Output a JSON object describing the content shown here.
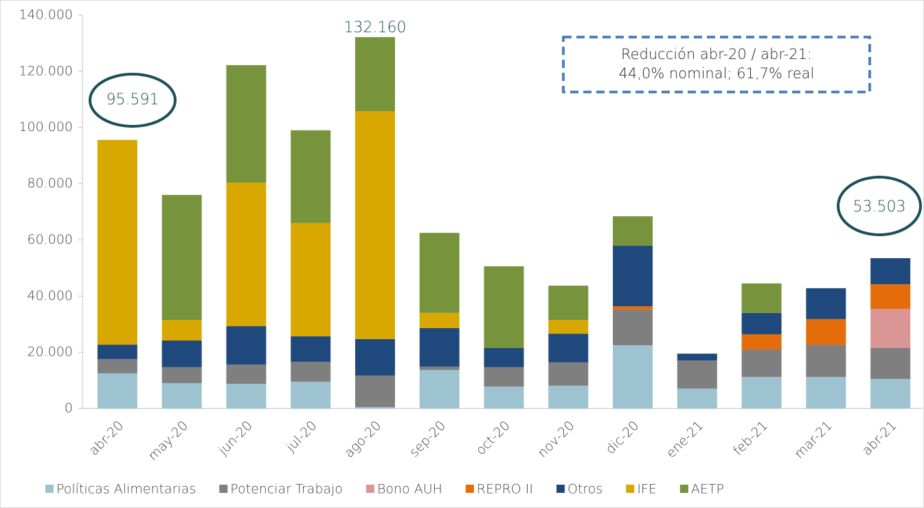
{
  "chart_data": {
    "type": "stacked_bar",
    "categories": [
      "abr-20",
      "may-20",
      "jun-20",
      "jul-20",
      "ago-20",
      "sep-20",
      "oct-20",
      "nov-20",
      "dic-20",
      "ene-21",
      "feb-21",
      "mar-21",
      "abr-21"
    ],
    "series": [
      {
        "name": "Políticas Alimentarias",
        "color": "#9dc3d0",
        "values": [
          12500,
          9000,
          8800,
          9500,
          500,
          13700,
          7800,
          8100,
          22500,
          7100,
          11200,
          11200,
          10500
        ]
      },
      {
        "name": "Potenciar Trabajo",
        "color": "#7f7f7f",
        "values": [
          5100,
          5700,
          6800,
          7100,
          11200,
          1200,
          6900,
          8300,
          12700,
          10000,
          9800,
          11500,
          11000
        ]
      },
      {
        "name": "Bono AUH",
        "color": "#d99694",
        "values": [
          null,
          null,
          null,
          null,
          null,
          null,
          null,
          null,
          null,
          null,
          null,
          null,
          13900
        ]
      },
      {
        "name": "REPRO II",
        "color": "#e46c0a",
        "values": [
          null,
          null,
          null,
          null,
          null,
          null,
          null,
          null,
          1200,
          null,
          5400,
          9100,
          8800
        ]
      },
      {
        "name": "Otros",
        "color": "#1f497d",
        "values": [
          5100,
          9500,
          13700,
          9100,
          13000,
          13700,
          6800,
          10200,
          21500,
          2400,
          7600,
          11000,
          9300
        ]
      },
      {
        "name": "IFE",
        "color": "#d8a800",
        "values": [
          72891,
          7300,
          51100,
          40300,
          81100,
          5400,
          null,
          4900,
          null,
          null,
          null,
          null,
          null
        ]
      },
      {
        "name": "AETP",
        "color": "#77933c",
        "values": [
          null,
          44500,
          41800,
          33000,
          26360,
          28500,
          29100,
          12200,
          10500,
          null,
          10500,
          null,
          null
        ]
      }
    ],
    "ylim": [
      0,
      140000
    ],
    "yticks": [
      0,
      {
        "value": 20000,
        "label": "20.000"
      },
      {
        "value": 40000,
        "label": "40.000"
      },
      {
        "value": 60000,
        "label": "60.000"
      },
      {
        "value": 80000,
        "label": "80.000"
      },
      {
        "value": 100000,
        "label": "100.000"
      },
      {
        "value": 120000,
        "label": "120.000"
      },
      {
        "value": 140000,
        "label": "140.000"
      }
    ],
    "annotations": [
      "95.591",
      "132.160",
      "53.503",
      "Reducción abr-20 / abr-21:",
      "44,0% nominal; 61,7% real"
    ],
    "legend": "bottom"
  }
}
